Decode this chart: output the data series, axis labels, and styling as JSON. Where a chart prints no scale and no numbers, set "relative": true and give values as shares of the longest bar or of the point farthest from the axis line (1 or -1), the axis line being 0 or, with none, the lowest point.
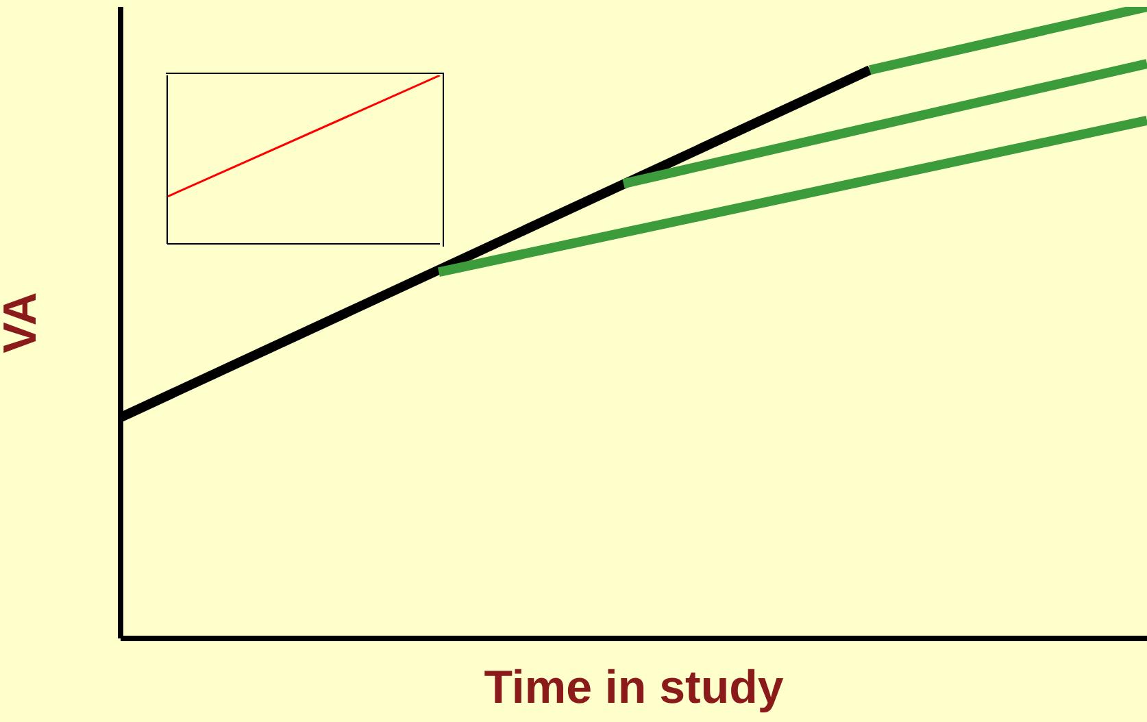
{
  "chart_data": [
    {
      "type": "line",
      "xlabel": "Time in study",
      "ylabel": "VA",
      "relative": true,
      "tick_labels": false,
      "grid": false,
      "legend": false,
      "marker": "none",
      "line_style": "solid",
      "categories": [
        null,
        null,
        null,
        null,
        null,
        null,
        null,
        null,
        null,
        null,
        null,
        null,
        null,
        null,
        null,
        null,
        null,
        null,
        null,
        null,
        null,
        null,
        null,
        null,
        null,
        null,
        null,
        null,
        null,
        null,
        null,
        null,
        null,
        null,
        null,
        null,
        null,
        null,
        null,
        null,
        null,
        null,
        null,
        null,
        null,
        null,
        null,
        null,
        null,
        null,
        null,
        null,
        null,
        null,
        null,
        null,
        null,
        null,
        null,
        null,
        null,
        null,
        null,
        null,
        null,
        null,
        null,
        null,
        null,
        null,
        null,
        null,
        null,
        null,
        null,
        null,
        null,
        null,
        null,
        null,
        null,
        null,
        null,
        null,
        null,
        null,
        null,
        null,
        null,
        null,
        null,
        null,
        null,
        null,
        null,
        null,
        null,
        null,
        null,
        null,
        null
      ],
      "series": [
        {
          "color": "#000000",
          "values": [
            0.35,
            null,
            null,
            null,
            null,
            null,
            null,
            null,
            null,
            null,
            null,
            null,
            null,
            null,
            null,
            null,
            null,
            null,
            null,
            null,
            null,
            null,
            null,
            null,
            null,
            null,
            null,
            null,
            null,
            null,
            null,
            null,
            null,
            null,
            null,
            null,
            null,
            null,
            null,
            null,
            null,
            null,
            null,
            null,
            null,
            null,
            null,
            null,
            null,
            null,
            null,
            null,
            null,
            null,
            null,
            null,
            null,
            null,
            null,
            null,
            null,
            null,
            null,
            null,
            null,
            null,
            null,
            null,
            null,
            null,
            null,
            null,
            null,
            0.9,
            null,
            null,
            null,
            null,
            null,
            null,
            null,
            null,
            null,
            null,
            null,
            null,
            null,
            null,
            null,
            null,
            null,
            null,
            null,
            null,
            null,
            null,
            null,
            null,
            null,
            null,
            null
          ]
        },
        {
          "color": "#3c9c3c",
          "values": [
            null,
            null,
            null,
            null,
            null,
            null,
            null,
            null,
            null,
            null,
            null,
            null,
            null,
            null,
            null,
            null,
            null,
            null,
            null,
            null,
            null,
            null,
            null,
            null,
            null,
            null,
            null,
            null,
            null,
            null,
            null,
            0.58,
            null,
            null,
            null,
            null,
            null,
            null,
            null,
            null,
            null,
            null,
            null,
            null,
            null,
            null,
            null,
            null,
            null,
            null,
            null,
            null,
            null,
            null,
            null,
            null,
            null,
            null,
            null,
            null,
            null,
            null,
            null,
            null,
            null,
            null,
            null,
            null,
            null,
            null,
            null,
            null,
            null,
            null,
            null,
            null,
            null,
            null,
            null,
            null,
            null,
            null,
            null,
            null,
            null,
            null,
            null,
            null,
            null,
            null,
            null,
            null,
            null,
            null,
            null,
            null,
            null,
            null,
            null,
            null,
            0.82
          ]
        },
        {
          "color": "#3c9c3c",
          "values": [
            null,
            null,
            null,
            null,
            null,
            null,
            null,
            null,
            null,
            null,
            null,
            null,
            null,
            null,
            null,
            null,
            null,
            null,
            null,
            null,
            null,
            null,
            null,
            null,
            null,
            null,
            null,
            null,
            null,
            null,
            null,
            null,
            null,
            null,
            null,
            null,
            null,
            null,
            null,
            null,
            null,
            null,
            null,
            null,
            null,
            null,
            null,
            null,
            null,
            0.72,
            null,
            null,
            null,
            null,
            null,
            null,
            null,
            null,
            null,
            null,
            null,
            null,
            null,
            null,
            null,
            null,
            null,
            null,
            null,
            null,
            null,
            null,
            null,
            null,
            null,
            null,
            null,
            null,
            null,
            null,
            null,
            null,
            null,
            null,
            null,
            null,
            null,
            null,
            null,
            null,
            null,
            null,
            null,
            null,
            null,
            null,
            null,
            null,
            null,
            null,
            0.91
          ]
        },
        {
          "color": "#3c9c3c",
          "values": [
            null,
            null,
            null,
            null,
            null,
            null,
            null,
            null,
            null,
            null,
            null,
            null,
            null,
            null,
            null,
            null,
            null,
            null,
            null,
            null,
            null,
            null,
            null,
            null,
            null,
            null,
            null,
            null,
            null,
            null,
            null,
            null,
            null,
            null,
            null,
            null,
            null,
            null,
            null,
            null,
            null,
            null,
            null,
            null,
            null,
            null,
            null,
            null,
            null,
            null,
            null,
            null,
            null,
            null,
            null,
            null,
            null,
            null,
            null,
            null,
            null,
            null,
            null,
            null,
            null,
            null,
            null,
            null,
            null,
            null,
            null,
            null,
            null,
            0.9,
            null,
            null,
            null,
            null,
            null,
            null,
            null,
            null,
            null,
            null,
            null,
            null,
            null,
            null,
            null,
            null,
            null,
            null,
            null,
            null,
            null,
            null,
            null,
            null,
            null,
            null,
            1
          ]
        }
      ]
    },
    {
      "type": "line",
      "relative": true,
      "tick_labels": false,
      "grid": false,
      "legend": false,
      "marker": "none",
      "line_style": "solid",
      "categories": [
        null,
        null
      ],
      "series": [
        {
          "color": "#ff0000",
          "values": [
            0.28,
            1
          ]
        }
      ]
    }
  ]
}
